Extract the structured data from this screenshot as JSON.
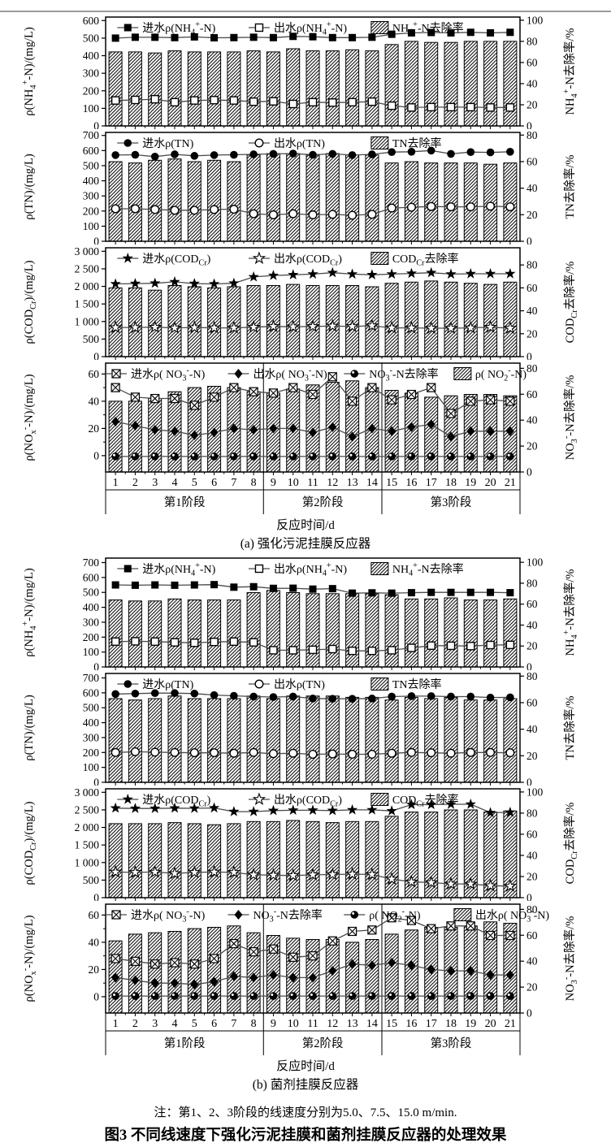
{
  "figure": {
    "x_axis_title": "反应时间/d",
    "caption_a": "(a) 强化污泥挂膜反应器",
    "caption_b": "(b) 菌剂挂膜反应器",
    "note": "注：第1、2、3阶段的线速度分别为5.0、7.5、15.0 m/min.",
    "title": "图3  不同线速度下强化污泥挂膜和菌剂挂膜反应器的处理效果",
    "days": [
      1,
      2,
      3,
      4,
      5,
      6,
      7,
      8,
      9,
      10,
      11,
      12,
      13,
      14,
      15,
      16,
      17,
      18,
      19,
      20,
      21
    ],
    "phases": [
      {
        "label": "第1阶段",
        "from": 1,
        "to": 8
      },
      {
        "label": "第2阶段",
        "from": 9,
        "to": 14
      },
      {
        "label": "第3阶段",
        "from": 15,
        "to": 21
      }
    ]
  },
  "chart_data": [
    {
      "id": "a1",
      "panel": "a",
      "type": "bar+line",
      "left_axis": {
        "label": "ρ(NH_{4}^{+}-N)/(mg/L)",
        "ticks": [
          0,
          100,
          200,
          300,
          400,
          500,
          600
        ],
        "min": 0,
        "max": 620
      },
      "right_axis": {
        "label": "NH_{4}^{+}-N去除率/%",
        "ticks": [
          0,
          20,
          40,
          60,
          80,
          100
        ],
        "min": 0,
        "max": 103
      },
      "series": [
        {
          "kind": "line",
          "label": "进水ρ(NH_{4}^{+}-N)",
          "marker": "square-filled",
          "axis": "left",
          "values": [
            500,
            505,
            505,
            503,
            507,
            502,
            503,
            505,
            503,
            510,
            508,
            503,
            503,
            505,
            522,
            530,
            532,
            530,
            533,
            530,
            533
          ]
        },
        {
          "kind": "line",
          "label": "出水ρ(NH_{4}^{+}-N)",
          "marker": "square-open",
          "axis": "left",
          "values": [
            145,
            148,
            152,
            135,
            145,
            147,
            145,
            138,
            140,
            125,
            135,
            133,
            135,
            138,
            115,
            105,
            107,
            107,
            107,
            105,
            105
          ]
        },
        {
          "kind": "bar",
          "label": "NH_{4}^{+}-N去除率",
          "axis": "right",
          "values": [
            70,
            70,
            69,
            71,
            70,
            70,
            70,
            71,
            70,
            73,
            71,
            71,
            72,
            71,
            77,
            80,
            79,
            79,
            80,
            80,
            80
          ]
        }
      ]
    },
    {
      "id": "a2",
      "panel": "a",
      "type": "bar+line",
      "left_axis": {
        "label": "ρ(TN)/(mg/L)",
        "ticks": [
          0,
          100,
          200,
          300,
          400,
          500,
          600,
          700
        ],
        "min": 0,
        "max": 720
      },
      "right_axis": {
        "label": "TN去除率/%",
        "ticks": [
          0,
          20,
          40,
          60,
          80
        ],
        "min": 0,
        "max": 82
      },
      "series": [
        {
          "kind": "line",
          "label": "进水ρ(TN)",
          "marker": "circle-filled",
          "axis": "left",
          "values": [
            570,
            572,
            560,
            575,
            565,
            570,
            572,
            575,
            578,
            580,
            572,
            578,
            570,
            575,
            590,
            592,
            600,
            578,
            590,
            588,
            592
          ]
        },
        {
          "kind": "line",
          "label": "出水ρ(TN)",
          "marker": "circle-open",
          "axis": "left",
          "values": [
            215,
            215,
            210,
            205,
            205,
            210,
            212,
            182,
            175,
            182,
            175,
            178,
            172,
            178,
            220,
            225,
            230,
            228,
            228,
            232,
            228
          ]
        },
        {
          "kind": "bar",
          "label": "TN去除率",
          "axis": "right",
          "values": [
            60,
            59,
            61,
            62,
            60,
            61,
            60,
            65,
            66,
            66,
            65,
            66,
            65,
            65,
            59,
            60,
            59,
            59,
            59,
            58,
            59
          ]
        }
      ]
    },
    {
      "id": "a3",
      "panel": "a",
      "type": "bar+line",
      "left_axis": {
        "label": "ρ(COD_{Cr})/(mg/L)",
        "ticks": [
          0,
          500,
          1000,
          1500,
          2000,
          2500,
          3000
        ],
        "min": 0,
        "max": 3100
      },
      "right_axis": {
        "label": "COD_{Cr}去除率/%",
        "ticks": [
          0,
          20,
          40,
          60,
          80
        ],
        "min": 0,
        "max": 95
      },
      "series": [
        {
          "kind": "line",
          "label": "进水ρ(COD_{Cr})",
          "marker": "star-filled",
          "axis": "left",
          "values": [
            2070,
            2080,
            2090,
            2130,
            2080,
            2070,
            2090,
            2270,
            2310,
            2330,
            2350,
            2390,
            2350,
            2330,
            2350,
            2370,
            2390,
            2350,
            2360,
            2360,
            2360
          ]
        },
        {
          "kind": "line",
          "label": "出水ρ(COD_{Cr})",
          "marker": "star-open",
          "axis": "left",
          "values": [
            830,
            830,
            840,
            820,
            830,
            820,
            820,
            840,
            860,
            850,
            860,
            870,
            860,
            880,
            820,
            820,
            810,
            810,
            820,
            840,
            810
          ]
        },
        {
          "kind": "bar",
          "label": "COD_{Cr}去除率",
          "axis": "right",
          "values": [
            60,
            60,
            58,
            62,
            61,
            60,
            61,
            62,
            62,
            63,
            62,
            62,
            62,
            61,
            64,
            65,
            66,
            65,
            64,
            63,
            65
          ]
        }
      ]
    },
    {
      "id": "a4",
      "panel": "a",
      "type": "bar+line",
      "phase_separators": true,
      "left_axis": {
        "label": "ρ(NO_{x}^{-}-N)/(mg/L)",
        "ticks": [
          0,
          20,
          40,
          60
        ],
        "min": -12,
        "max": 68,
        "minor": true
      },
      "right_axis": {
        "label": "NO_{3}^{-}-N去除率/%",
        "ticks": [
          0,
          20,
          40,
          60,
          80
        ],
        "min": 0,
        "max": 84
      },
      "series": [
        {
          "kind": "line",
          "label": "进水ρ( NO_{3}^{-}-N)",
          "marker": "square-x",
          "axis": "left",
          "values": [
            50,
            43,
            42,
            42,
            37,
            43,
            50,
            47,
            46,
            50,
            45,
            58,
            40,
            50,
            41,
            45,
            50,
            31,
            40,
            41,
            40
          ]
        },
        {
          "kind": "line",
          "label": "出水ρ( NO_{3}^{-}-N)",
          "marker": "diamond-filled",
          "axis": "left",
          "values": [
            25,
            22,
            19,
            18,
            15,
            17,
            20,
            19,
            20,
            20,
            17,
            21,
            14,
            20,
            18,
            21,
            23,
            14,
            18,
            18,
            18
          ]
        },
        {
          "kind": "line",
          "label": "NO_{3}^{-}-N去除率",
          "marker": "ball",
          "axis": "right",
          "values": [
            12,
            12,
            12,
            12,
            12,
            12,
            12,
            12,
            12,
            12,
            12,
            12,
            12,
            12,
            12,
            12,
            12,
            12,
            12,
            12,
            12
          ]
        },
        {
          "kind": "bar",
          "label": "ρ( NO_{2}^{-}-N)",
          "axis": "left",
          "values": [
            40,
            40,
            42,
            47,
            50,
            51,
            50,
            47,
            46,
            49,
            52,
            54,
            55,
            50,
            48,
            46,
            43,
            44,
            45,
            45,
            44
          ]
        }
      ]
    },
    {
      "id": "b1",
      "panel": "b",
      "type": "bar+line",
      "left_axis": {
        "label": "ρ(NH_{4}^{+}-N)/(mg/L)",
        "ticks": [
          0,
          100,
          200,
          300,
          400,
          500,
          600,
          700
        ],
        "min": 0,
        "max": 730
      },
      "right_axis": {
        "label": "NH_{4}^{+}-N去除率/%",
        "ticks": [
          0,
          20,
          40,
          60,
          80,
          100
        ],
        "min": 0,
        "max": 104
      },
      "series": [
        {
          "kind": "line",
          "label": "进水ρ(NH_{4}^{+}-N)",
          "marker": "square-filled",
          "axis": "left",
          "values": [
            550,
            548,
            550,
            548,
            550,
            552,
            535,
            538,
            527,
            528,
            522,
            525,
            495,
            497,
            495,
            498,
            500,
            500,
            500,
            500,
            498
          ]
        },
        {
          "kind": "line",
          "label": "出水ρ(NH_{4}^{+}-N)",
          "marker": "square-open",
          "axis": "left",
          "values": [
            170,
            172,
            170,
            165,
            162,
            168,
            170,
            165,
            112,
            112,
            115,
            120,
            108,
            108,
            112,
            128,
            143,
            142,
            140,
            147,
            148
          ]
        },
        {
          "kind": "bar",
          "label": "NH_{4}^{+}-N去除率",
          "axis": "right",
          "values": [
            64,
            63,
            63,
            65,
            64,
            64,
            64,
            71,
            73,
            71,
            70,
            70,
            70,
            70,
            69,
            65,
            65,
            66,
            64,
            64,
            65
          ]
        }
      ]
    },
    {
      "id": "b2",
      "panel": "b",
      "type": "bar+line",
      "left_axis": {
        "label": "ρ(TN)/(mg/L)",
        "ticks": [
          0,
          100,
          200,
          300,
          400,
          500,
          600,
          700
        ],
        "min": 0,
        "max": 730
      },
      "right_axis": {
        "label": "TN去除率/%",
        "ticks": [
          0,
          20,
          40,
          60,
          80
        ],
        "min": 0,
        "max": 82
      },
      "series": [
        {
          "kind": "line",
          "label": "进水ρ(TN)",
          "marker": "circle-filled",
          "axis": "left",
          "values": [
            592,
            595,
            598,
            598,
            595,
            585,
            580,
            575,
            572,
            575,
            562,
            560,
            560,
            562,
            575,
            578,
            578,
            575,
            575,
            568,
            570
          ]
        },
        {
          "kind": "line",
          "label": "出水ρ(TN)",
          "marker": "circle-open",
          "axis": "left",
          "values": [
            200,
            205,
            202,
            200,
            198,
            198,
            195,
            200,
            192,
            195,
            188,
            190,
            188,
            188,
            195,
            200,
            198,
            195,
            200,
            200,
            198
          ]
        },
        {
          "kind": "bar",
          "label": "TN去除率",
          "axis": "right",
          "values": [
            63,
            62,
            63,
            65,
            63,
            63,
            63,
            65,
            63,
            65,
            65,
            65,
            64,
            64,
            62,
            64,
            63,
            64,
            62,
            62,
            63
          ]
        }
      ]
    },
    {
      "id": "b3",
      "panel": "b",
      "type": "bar+line",
      "left_axis": {
        "label": "ρ(COD_{Cr})/(mg/L)",
        "ticks": [
          0,
          500,
          1000,
          1500,
          2000,
          2500,
          3000
        ],
        "min": 0,
        "max": 3100
      },
      "right_axis": {
        "label": "COD_{Cr}去除率/%",
        "ticks": [
          0,
          20,
          40,
          60,
          80,
          100
        ],
        "min": 0,
        "max": 103
      },
      "series": [
        {
          "kind": "line",
          "label": "进水ρ(COD_{Cr})",
          "marker": "star-filled",
          "axis": "left",
          "values": [
            2550,
            2540,
            2540,
            2550,
            2545,
            2555,
            2450,
            2450,
            2480,
            2490,
            2490,
            2480,
            2500,
            2500,
            2470,
            2650,
            2650,
            2660,
            2660,
            2420,
            2430
          ]
        },
        {
          "kind": "line",
          "label": "出水ρ(COD_{Cr})",
          "marker": "star-open",
          "axis": "left",
          "values": [
            730,
            720,
            730,
            690,
            720,
            730,
            720,
            650,
            640,
            630,
            650,
            660,
            670,
            660,
            530,
            450,
            430,
            390,
            390,
            340,
            330
          ]
        },
        {
          "kind": "bar",
          "label": "COD_{Cr}去除率",
          "axis": "right",
          "values": [
            70,
            70,
            70,
            71,
            70,
            69,
            70,
            72,
            72,
            73,
            72,
            71,
            72,
            72,
            77,
            81,
            81,
            83,
            83,
            81,
            82
          ]
        }
      ]
    },
    {
      "id": "b4",
      "panel": "b",
      "type": "bar+line",
      "phase_separators": true,
      "left_axis": {
        "label": "ρ(NO_{x}^{-}-N)/(mg/L)",
        "ticks": [
          0,
          20,
          40,
          60
        ],
        "min": -12,
        "max": 68,
        "minor": true
      },
      "right_axis": {
        "label": "NO_{3}^{-}-N去除率/%",
        "ticks": [
          0,
          20,
          40,
          60,
          80
        ],
        "min": 0,
        "max": 84
      },
      "series": [
        {
          "kind": "line",
          "label": "进水ρ( NO_{3}^{-}-N)",
          "marker": "square-x",
          "axis": "left",
          "values": [
            28,
            26,
            24,
            25,
            24,
            28,
            39,
            33,
            35,
            29,
            30,
            41,
            48,
            49,
            58,
            56,
            50,
            52,
            52,
            45,
            45
          ]
        },
        {
          "kind": "line",
          "label": "NO_{3}^{-}-N去除率",
          "marker": "diamond-filled",
          "axis": "left",
          "values": [
            14,
            12,
            10,
            10,
            9,
            11,
            15,
            14,
            16,
            14,
            14,
            19,
            24,
            23,
            25,
            23,
            20,
            19,
            19,
            16,
            16
          ]
        },
        {
          "kind": "line",
          "label": "ρ( NO_{2}^{-}-N)",
          "marker": "ball",
          "axis": "left",
          "values": [
            0.5,
            0.5,
            0.5,
            0.5,
            0.5,
            0.5,
            0.5,
            0.5,
            0.5,
            0.5,
            0.5,
            0.5,
            0.5,
            0.5,
            0.5,
            0.5,
            0.5,
            0.5,
            0.5,
            0.5,
            0.5
          ]
        },
        {
          "kind": "bar",
          "label": "出水ρ( NO_{3}^{-}-N)",
          "axis": "left",
          "values": [
            41,
            46,
            47,
            48,
            50,
            51,
            52,
            47,
            45,
            43,
            42,
            42,
            40,
            42,
            46,
            49,
            51,
            51,
            52,
            55,
            54
          ]
        }
      ]
    }
  ]
}
